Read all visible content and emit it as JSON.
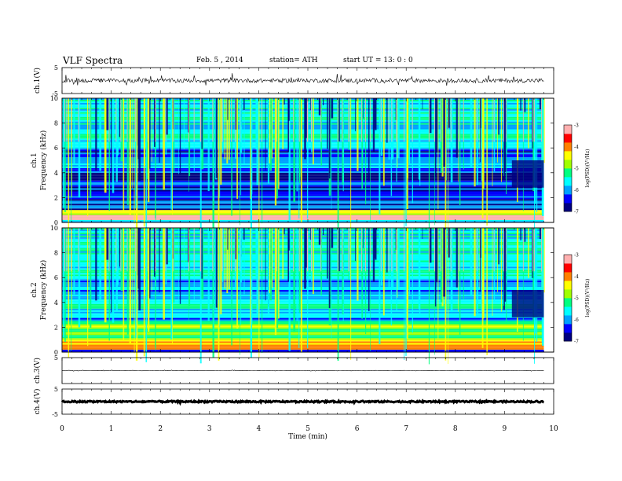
{
  "header": {
    "title": "VLF  Spectra",
    "date": "Feb. 5  , 2014",
    "station": "station= ATH",
    "start": "start  UT  =   13: 0  : 0"
  },
  "chart_data": [
    {
      "type": "line",
      "name": "ch1-waveform",
      "ylabel": "ch.1(V)",
      "ylim": [
        -5,
        5
      ],
      "yticks": [
        "5",
        "-5"
      ],
      "x_range_min": [
        0,
        9.8
      ],
      "level": 0,
      "noise_amplitude": 0.8,
      "spike_amplitude": 2.2
    },
    {
      "type": "heatmap",
      "name": "ch1-spectrogram",
      "ylabel_outer": "ch.1",
      "ylabel": "Frequency  (kHz)",
      "ylim": [
        0,
        10
      ],
      "yticks": [
        "0",
        "2",
        "4",
        "6",
        "8",
        "10"
      ],
      "x_range_min": [
        0,
        9.8
      ],
      "colorbar": {
        "label": "log(PSD)(V²/Hz)",
        "range": [
          -7,
          -3
        ],
        "ticks": [
          "-3",
          "-4",
          "-5",
          "-6",
          "-7"
        ]
      },
      "background_bands": [
        {
          "f": [
            0,
            0.2
          ],
          "v": -5.6
        },
        {
          "f": [
            0.2,
            0.6
          ],
          "v": -3.3
        },
        {
          "f": [
            0.6,
            1.0
          ],
          "v": -4.6
        },
        {
          "f": [
            1.0,
            2.5
          ],
          "v": -6.5
        },
        {
          "f": [
            2.5,
            4.0
          ],
          "v": -6.6
        },
        {
          "f": [
            4.0,
            6.0
          ],
          "v": -6.2
        },
        {
          "f": [
            6.0,
            10.0
          ],
          "v": -5.6
        }
      ]
    },
    {
      "type": "heatmap",
      "name": "ch2-spectrogram",
      "ylabel_outer": "ch.2",
      "ylabel": "Frequency  (kHz)",
      "ylim": [
        0,
        10
      ],
      "yticks": [
        "0",
        "2",
        "4",
        "6",
        "8",
        "10"
      ],
      "x_range_min": [
        0,
        9.8
      ],
      "colorbar": {
        "label": "log(PSD)(V²/Hz)",
        "range": [
          -7,
          -3
        ],
        "ticks": [
          "-3",
          "-4",
          "-5",
          "-6",
          "-7"
        ]
      },
      "background_bands": [
        {
          "f": [
            0,
            0.2
          ],
          "v": -6.0
        },
        {
          "f": [
            0.2,
            1.0
          ],
          "v": -4.3
        },
        {
          "f": [
            1.0,
            2.5
          ],
          "v": -5.0
        },
        {
          "f": [
            2.5,
            4.0
          ],
          "v": -5.8
        },
        {
          "f": [
            4.0,
            6.0
          ],
          "v": -5.9
        },
        {
          "f": [
            6.0,
            10.0
          ],
          "v": -5.5
        }
      ]
    },
    {
      "type": "line",
      "name": "ch3-waveform",
      "ylabel": "ch.3(V)",
      "ylim": [
        -5,
        5
      ],
      "yticks": [
        "5"
      ],
      "x_range_min": [
        0,
        9.8
      ],
      "level": 0,
      "noise_amplitude": 0.05,
      "spike_amplitude": 0.2
    },
    {
      "type": "line",
      "name": "ch4-waveform",
      "ylabel": "ch.4(V)",
      "ylim": [
        -5,
        5
      ],
      "yticks": [
        "5",
        "-5"
      ],
      "x_range_min": [
        0,
        9.8
      ],
      "level": 0,
      "noise_amplitude": 0.3,
      "spike_amplitude": 0.3
    }
  ],
  "x_axis": {
    "label": "Time  (min)",
    "range": [
      0,
      10
    ],
    "ticks": [
      "0",
      "1",
      "2",
      "3",
      "4",
      "5",
      "6",
      "7",
      "8",
      "9",
      "10"
    ]
  },
  "colors": {
    "colormap": [
      "#000080",
      "#0000ff",
      "#00a0ff",
      "#00ffff",
      "#00ff80",
      "#a0ff00",
      "#ffff00",
      "#ff8000",
      "#ff0000",
      "#ffb0b0"
    ]
  }
}
